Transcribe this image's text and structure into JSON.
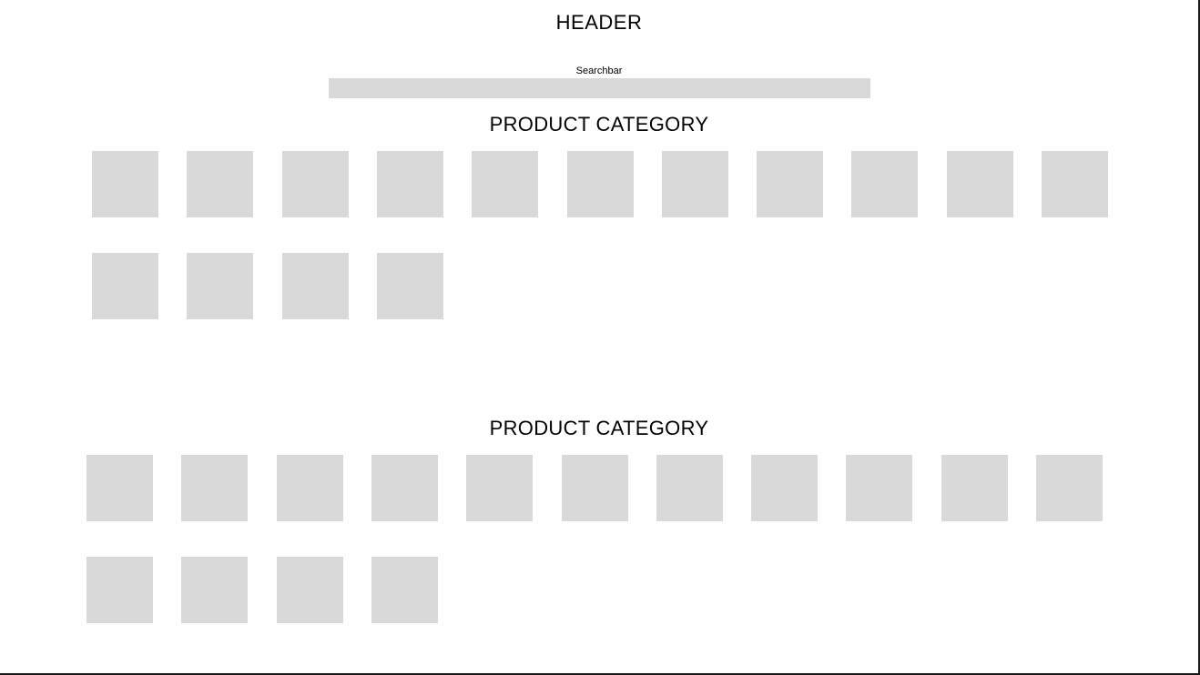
{
  "header": {
    "title": "HEADER"
  },
  "search": {
    "label": "Searchbar",
    "value": "",
    "placeholder": ""
  },
  "sections": [
    {
      "title": "PRODUCT CATEGORY",
      "tile_count": 15
    },
    {
      "title": "PRODUCT CATEGORY",
      "tile_count": 15
    }
  ],
  "colors": {
    "background": "#ffffff",
    "placeholder_fill": "#d9d9d9",
    "text": "#000000",
    "frame_border": "#1a1a1a"
  }
}
